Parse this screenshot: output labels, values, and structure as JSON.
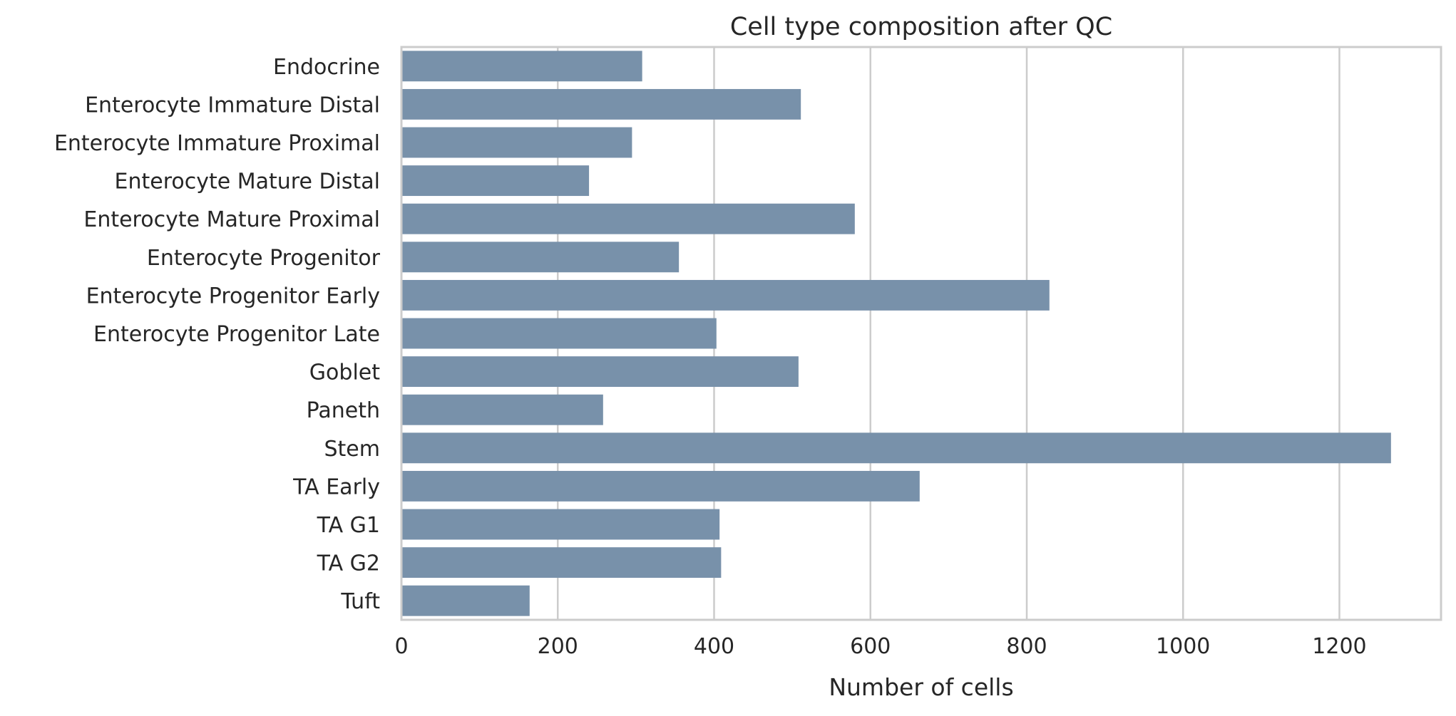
{
  "chart_data": {
    "type": "bar",
    "orientation": "horizontal",
    "title": "Cell type composition after QC",
    "xlabel": "Number of cells",
    "ylabel": "",
    "xlim": [
      0,
      1330
    ],
    "xticks": [
      0,
      200,
      400,
      600,
      800,
      1000,
      1200
    ],
    "grid": "x",
    "bar_color": "#7891aa",
    "categories": [
      "Endocrine",
      "Enterocyte Immature Distal",
      "Enterocyte Immature Proximal",
      "Enterocyte Mature Distal",
      "Enterocyte Mature Proximal",
      "Enterocyte Progenitor",
      "Enterocyte Progenitor Early",
      "Enterocyte Progenitor Late",
      "Goblet",
      "Paneth",
      "Stem",
      "TA Early",
      "TA G1",
      "TA G2",
      "Tuft"
    ],
    "values": [
      308,
      511,
      295,
      240,
      580,
      355,
      829,
      403,
      508,
      258,
      1266,
      663,
      407,
      409,
      164
    ]
  }
}
